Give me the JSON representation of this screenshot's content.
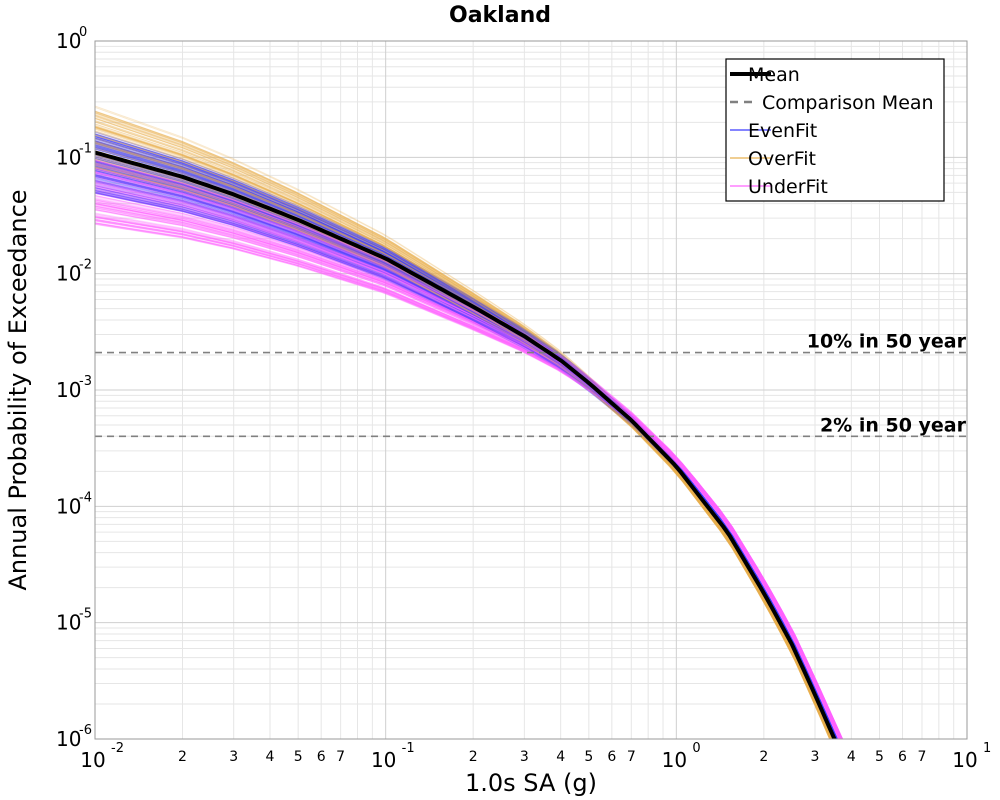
{
  "chart_data": {
    "type": "line",
    "title": "Oakland",
    "xlabel": "1.0s SA (g)",
    "ylabel": "Annual Probability of Exceedance",
    "xscale": "log",
    "yscale": "log",
    "xlim": [
      0.01,
      10
    ],
    "ylim": [
      1e-06,
      1
    ],
    "grid": true,
    "legend_position": "top-right",
    "x_major_ticks": [
      {
        "base": "10",
        "exp": "-2"
      },
      {
        "base": "10",
        "exp": "-1"
      },
      {
        "base": "10",
        "exp": "0"
      },
      {
        "base": "10",
        "exp": "1"
      }
    ],
    "x_minor_tick_labels": [
      "2",
      "3",
      "4",
      "5",
      "6",
      "7"
    ],
    "y_major_ticks": [
      {
        "base": "10",
        "exp": "0"
      },
      {
        "base": "10",
        "exp": "-1"
      },
      {
        "base": "10",
        "exp": "-2"
      },
      {
        "base": "10",
        "exp": "-3"
      },
      {
        "base": "10",
        "exp": "-4"
      },
      {
        "base": "10",
        "exp": "-5"
      },
      {
        "base": "10",
        "exp": "-6"
      }
    ],
    "legend": [
      {
        "label": "Mean",
        "style": "solid-thick",
        "color": "#000000"
      },
      {
        "label": "Comparison Mean",
        "style": "dashed",
        "color": "#808080"
      },
      {
        "label": "EvenFit",
        "style": "solid-thin",
        "color": "#3b3bff"
      },
      {
        "label": "OverFit",
        "style": "solid-thin",
        "color": "#e8b050"
      },
      {
        "label": "UnderFit",
        "style": "solid-thin",
        "color": "#ff66ff"
      }
    ],
    "reference_lines": [
      {
        "label": "10% in 50 year",
        "y": 0.0021
      },
      {
        "label": "2% in 50 year",
        "y": 0.0004
      }
    ],
    "series": [
      {
        "name": "Mean",
        "x": [
          0.01,
          0.02,
          0.03,
          0.05,
          0.1,
          0.2,
          0.3,
          0.4,
          0.5,
          0.7,
          1.0,
          1.5,
          2.0,
          2.5,
          3.0,
          3.5
        ],
        "y": [
          0.11,
          0.068,
          0.048,
          0.029,
          0.0135,
          0.0052,
          0.0029,
          0.0018,
          0.00115,
          0.00055,
          0.00022,
          6e-05,
          1.8e-05,
          6.5e-06,
          2.4e-06,
          1e-06
        ]
      }
    ],
    "ensemble": [
      {
        "name": "EvenFit",
        "color": "#3b3bff",
        "y_at_0_01_range": [
          0.04,
          0.16
        ],
        "x_at_1e-6_range": [
          3.0,
          3.6
        ]
      },
      {
        "name": "OverFit",
        "color": "#e8b050",
        "y_at_0_01_range": [
          0.05,
          0.3
        ],
        "x_at_1e-6_range": [
          2.9,
          3.5
        ]
      },
      {
        "name": "UnderFit",
        "color": "#ff66ff",
        "y_at_0_01_range": [
          0.025,
          0.09
        ],
        "x_at_1e-6_range": [
          3.2,
          3.7
        ]
      }
    ]
  }
}
